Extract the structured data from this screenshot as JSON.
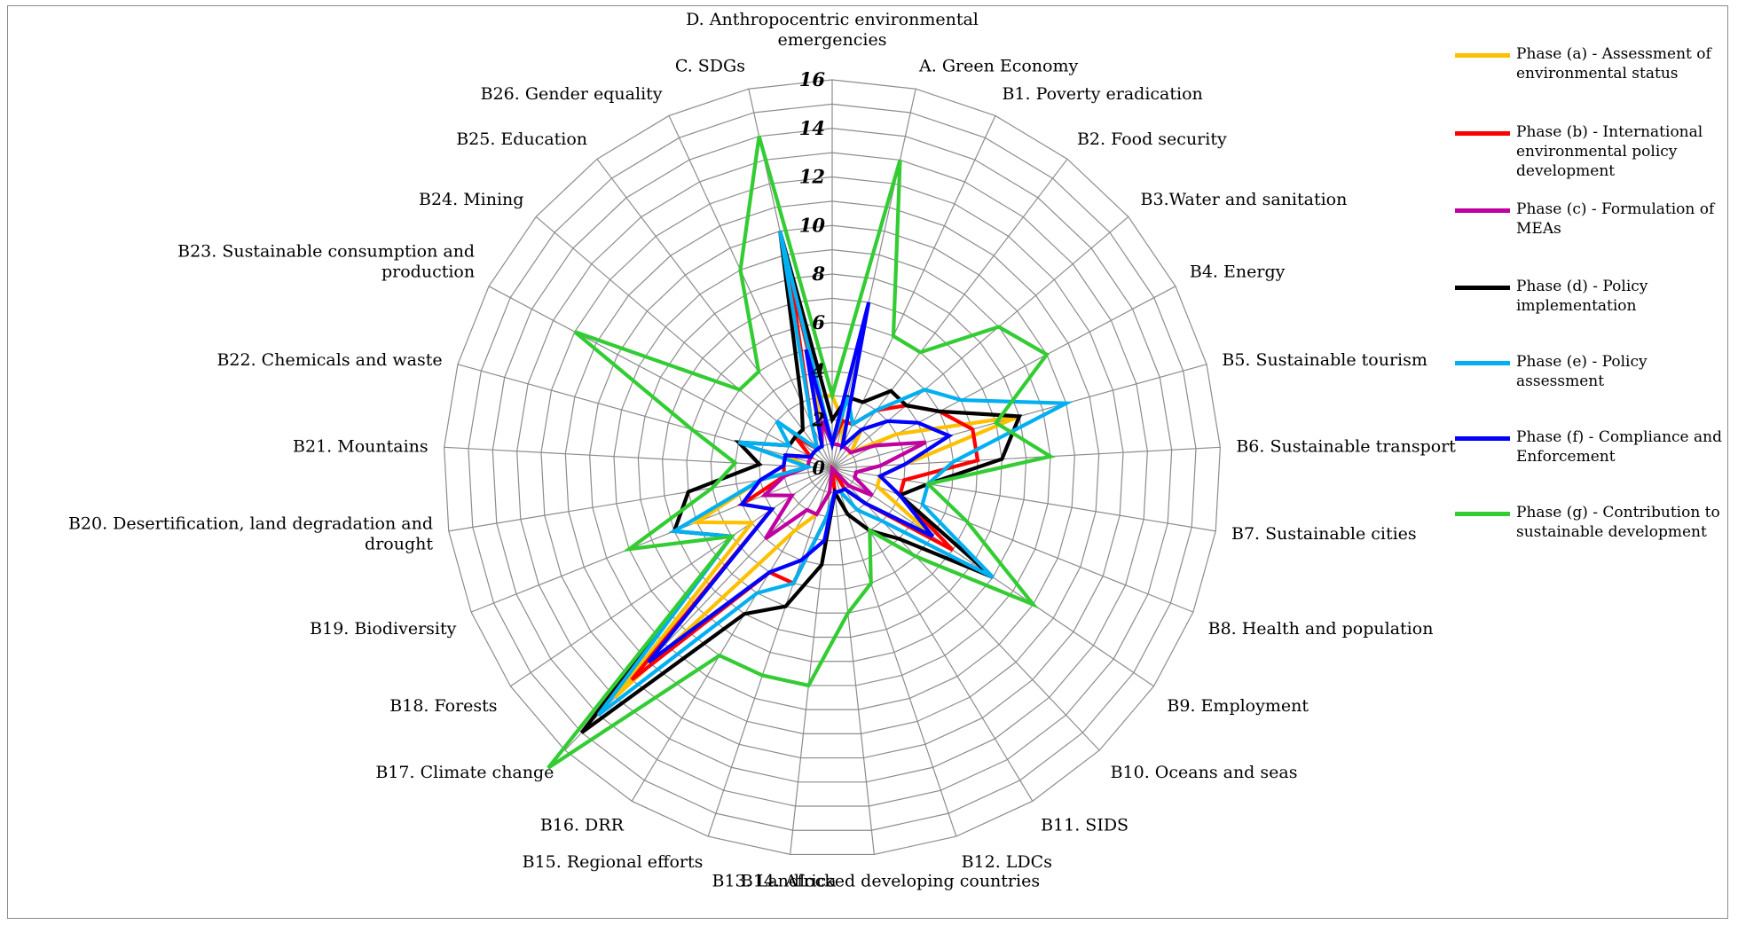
{
  "chart_data": {
    "type": "radar",
    "r_range": [
      0,
      16
    ],
    "r_ticks": [
      "0",
      "2",
      "4",
      "6",
      "8",
      "10",
      "12",
      "14",
      "16"
    ],
    "grid": true,
    "legend_position": "right",
    "categories": [
      "D. Anthropocentric environmental emergencies",
      "A. Green Economy",
      "B1. Poverty eradication",
      "B2. Food security",
      "B3.Water and sanitation",
      "B4. Energy",
      "B5. Sustainable tourism",
      "B6. Sustainable transport",
      "B7. Sustainable cities",
      "B8. Health and population",
      "B9. Employment",
      "B10. Oceans and seas",
      "B11. SIDS",
      "B12. LDCs",
      "B13. Landlocked developing countries",
      "B14. Africa",
      "B15. Regional efforts",
      "B16. DRR",
      "B17. Climate change",
      "B18. Forests",
      "B19. Biodiversity",
      "B20. Desertification, land degradation and drought",
      "B21. Mountains",
      "B22. Chemicals and waste",
      "B23. Sustainable consumption and production",
      "B24. Mining",
      "B25. Education",
      "B26. Gender equality",
      "C. SDGs"
    ],
    "series": [
      {
        "name": "Phase (a) - Assessment of environmental status",
        "color": "#FFC000",
        "values": [
          3,
          2,
          1,
          2,
          1,
          3,
          8,
          3,
          2,
          2,
          5,
          2,
          1,
          0,
          0,
          1,
          2,
          3,
          13,
          4,
          6,
          3,
          1,
          2,
          1,
          1,
          1,
          1,
          3
        ]
      },
      {
        "name": "Phase (b) - International environmental policy development",
        "color": "#FF0000",
        "values": [
          1,
          2,
          2,
          3,
          4,
          5,
          6,
          6,
          3,
          3,
          6,
          2,
          1,
          0,
          1,
          2,
          5,
          5,
          12,
          3,
          4,
          2,
          2,
          2,
          1,
          2,
          1,
          2,
          8
        ]
      },
      {
        "name": "Phase (c) - Formulation of MEAs",
        "color": "#C000A0",
        "values": [
          1,
          1,
          1,
          1,
          1,
          2,
          4,
          2,
          1,
          1,
          2,
          1,
          0,
          0,
          0,
          1,
          2,
          2,
          4,
          2,
          3,
          2,
          1,
          1,
          1,
          1,
          1,
          1,
          2
        ]
      },
      {
        "name": "Phase (d) - Policy implementation",
        "color": "#000000",
        "values": [
          2,
          3,
          3,
          4,
          4,
          5,
          8,
          7,
          4,
          3,
          8,
          4,
          3,
          2,
          1,
          4,
          6,
          7,
          15,
          5,
          7,
          6,
          3,
          4,
          2,
          2,
          2,
          3,
          10
        ]
      },
      {
        "name": "Phase (e) - Policy assessment",
        "color": "#00B0F0",
        "values": [
          1,
          3,
          2,
          3,
          5,
          6,
          10,
          5,
          4,
          4,
          8,
          3,
          2,
          1,
          1,
          2,
          5,
          6,
          14,
          5,
          7,
          3,
          1,
          4,
          2,
          3,
          1,
          2,
          10
        ]
      },
      {
        "name": "Phase (f) - Compliance and Enforcement",
        "color": "#0000FF",
        "values": [
          1,
          7,
          1,
          2,
          3,
          4,
          5,
          3,
          2,
          3,
          5,
          2,
          1,
          1,
          1,
          3,
          4,
          5,
          11,
          3,
          4,
          3,
          2,
          2,
          1,
          1,
          1,
          1,
          5
        ]
      },
      {
        "name": "Phase (g) - Contribution to sustainable development",
        "color": "#33CC33",
        "values": [
          3,
          13,
          6,
          6,
          9,
          10,
          7,
          9,
          4,
          6,
          10,
          5,
          3,
          5,
          6,
          9,
          9,
          9,
          17,
          5,
          9,
          5,
          4,
          6,
          12,
          5,
          5,
          9,
          14
        ]
      }
    ]
  }
}
